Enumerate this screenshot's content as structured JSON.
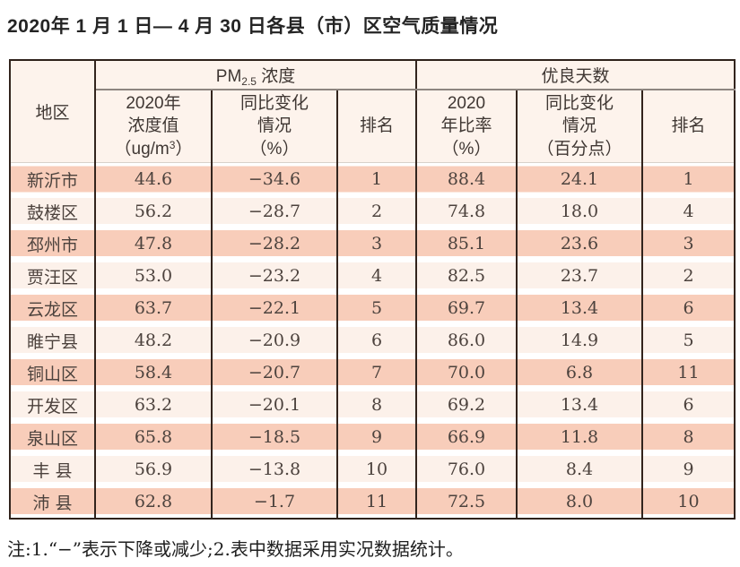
{
  "title": "2020年 1 月 1 日— 4 月 30 日各县（市）区空气质量情况",
  "table": {
    "corner": "地区",
    "pm_group": {
      "prefix": "PM",
      "sub": "2.5",
      "suffix": " 浓度"
    },
    "days_group": "优良天数",
    "sub_headers": {
      "concentration": {
        "line1": "2020年",
        "line2": "浓度值",
        "line3_pre": "（ug/m",
        "line3_sup": "3",
        "line3_post": "）"
      },
      "pm_change": {
        "line1": "同比变化",
        "line2": "情况",
        "line3": "（%）"
      },
      "pm_rank": "排名",
      "ratio": {
        "line1": "2020",
        "line2": "年比率",
        "line3": "（%）"
      },
      "days_change": {
        "line1": "同比变化",
        "line2": "情况",
        "line3": "（百分点）"
      },
      "days_rank": "排名"
    },
    "rows": [
      {
        "region": "新沂市",
        "concentration": "44.6",
        "pm_change": "−34.6",
        "pm_rank": "1",
        "ratio": "88.4",
        "days_change": "24.1",
        "days_rank": "1"
      },
      {
        "region": "鼓楼区",
        "concentration": "56.2",
        "pm_change": "−28.7",
        "pm_rank": "2",
        "ratio": "74.8",
        "days_change": "18.0",
        "days_rank": "4"
      },
      {
        "region": "邳州市",
        "concentration": "47.8",
        "pm_change": "−28.2",
        "pm_rank": "3",
        "ratio": "85.1",
        "days_change": "23.6",
        "days_rank": "3"
      },
      {
        "region": "贾汪区",
        "concentration": "53.0",
        "pm_change": "−23.2",
        "pm_rank": "4",
        "ratio": "82.5",
        "days_change": "23.7",
        "days_rank": "2"
      },
      {
        "region": "云龙区",
        "concentration": "63.7",
        "pm_change": "−22.1",
        "pm_rank": "5",
        "ratio": "69.7",
        "days_change": "13.4",
        "days_rank": "6"
      },
      {
        "region": "睢宁县",
        "concentration": "48.2",
        "pm_change": "−20.9",
        "pm_rank": "6",
        "ratio": "86.0",
        "days_change": "14.9",
        "days_rank": "5"
      },
      {
        "region": "铜山区",
        "concentration": "58.4",
        "pm_change": "−20.7",
        "pm_rank": "7",
        "ratio": "70.0",
        "days_change": "6.8",
        "days_rank": "11"
      },
      {
        "region": "开发区",
        "concentration": "63.2",
        "pm_change": "−20.1",
        "pm_rank": "8",
        "ratio": "69.2",
        "days_change": "13.4",
        "days_rank": "6"
      },
      {
        "region": "泉山区",
        "concentration": "65.8",
        "pm_change": "−18.5",
        "pm_rank": "9",
        "ratio": "66.9",
        "days_change": "11.8",
        "days_rank": "8"
      },
      {
        "region": "丰 县",
        "concentration": "56.9",
        "pm_change": "−13.8",
        "pm_rank": "10",
        "ratio": "76.0",
        "days_change": "8.4",
        "days_rank": "9"
      },
      {
        "region": "沛 县",
        "concentration": "62.8",
        "pm_change": "−1.7",
        "pm_rank": "11",
        "ratio": "72.5",
        "days_change": "8.0",
        "days_rank": "10"
      }
    ]
  },
  "footnote": "注:1.“−”表示下降或减少;2.表中数据采用实况数据统计。",
  "colors": {
    "row_salmon": "#f8cdba",
    "row_light": "#fcf1ea",
    "header_bg": "#fdf3ec",
    "border_dark": "#2e211a",
    "text": "#4c423d"
  }
}
